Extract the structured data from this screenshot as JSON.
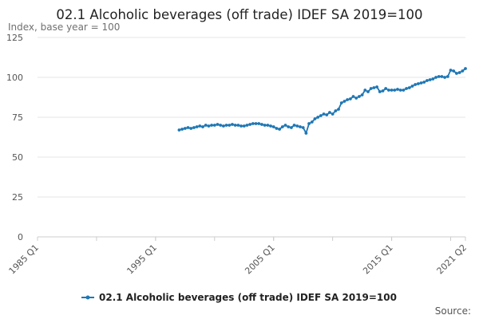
{
  "chart_data": {
    "type": "line",
    "title": "02.1 Alcoholic beverages (off trade) IDEF SA 2019=100",
    "ylabel": "Index, base year = 100",
    "xlabel": "",
    "x_ticks": [
      "1985 Q1",
      "1995 Q1",
      "2005 Q1",
      "2015 Q1",
      "2021 Q2"
    ],
    "y_ticks": [
      "0",
      "25",
      "50",
      "75",
      "100",
      "125"
    ],
    "xlim": [
      "1985 Q1",
      "2021 Q2"
    ],
    "ylim": [
      0,
      125
    ],
    "grid": "horizontal",
    "legend": "bottom-center",
    "source": "Source:",
    "colors": {
      "series": "#1f77b4",
      "grid": "#e4e4e4",
      "axis": "#cccccc"
    },
    "series": [
      {
        "name": "02.1 Alcoholic beverages (off trade) IDEF SA 2019=100",
        "x": [
          "1997 Q1",
          "1997 Q2",
          "1997 Q3",
          "1997 Q4",
          "1998 Q1",
          "1998 Q2",
          "1998 Q3",
          "1998 Q4",
          "1999 Q1",
          "1999 Q2",
          "1999 Q3",
          "1999 Q4",
          "2000 Q1",
          "2000 Q2",
          "2000 Q3",
          "2000 Q4",
          "2001 Q1",
          "2001 Q2",
          "2001 Q3",
          "2001 Q4",
          "2002 Q1",
          "2002 Q2",
          "2002 Q3",
          "2002 Q4",
          "2003 Q1",
          "2003 Q2",
          "2003 Q3",
          "2003 Q4",
          "2004 Q1",
          "2004 Q2",
          "2004 Q3",
          "2004 Q4",
          "2005 Q1",
          "2005 Q2",
          "2005 Q3",
          "2005 Q4",
          "2006 Q1",
          "2006 Q2",
          "2006 Q3",
          "2006 Q4",
          "2007 Q1",
          "2007 Q2",
          "2007 Q3",
          "2007 Q4",
          "2008 Q1",
          "2008 Q2",
          "2008 Q3",
          "2008 Q4",
          "2009 Q1",
          "2009 Q2",
          "2009 Q3",
          "2009 Q4",
          "2010 Q1",
          "2010 Q2",
          "2010 Q3",
          "2010 Q4",
          "2011 Q1",
          "2011 Q2",
          "2011 Q3",
          "2011 Q4",
          "2012 Q1",
          "2012 Q2",
          "2012 Q3",
          "2012 Q4",
          "2013 Q1",
          "2013 Q2",
          "2013 Q3",
          "2013 Q4",
          "2014 Q1",
          "2014 Q2",
          "2014 Q3",
          "2014 Q4",
          "2015 Q1",
          "2015 Q2",
          "2015 Q3",
          "2015 Q4",
          "2016 Q1",
          "2016 Q2",
          "2016 Q3",
          "2016 Q4",
          "2017 Q1",
          "2017 Q2",
          "2017 Q3",
          "2017 Q4",
          "2018 Q1",
          "2018 Q2",
          "2018 Q3",
          "2018 Q4",
          "2019 Q1",
          "2019 Q2",
          "2019 Q3",
          "2019 Q4",
          "2020 Q1",
          "2020 Q2",
          "2020 Q3",
          "2020 Q4",
          "2021 Q1",
          "2021 Q2"
        ],
        "values": [
          67,
          67.5,
          68,
          68.5,
          68,
          68.5,
          69,
          69.5,
          69,
          70,
          69.5,
          70,
          70,
          70.5,
          70,
          69.5,
          70,
          70,
          70.5,
          70,
          70,
          69.5,
          69.5,
          70,
          70.5,
          71,
          71,
          71,
          70.5,
          70,
          70,
          69.5,
          69,
          68,
          67.5,
          69,
          70,
          69,
          68.5,
          70,
          69.5,
          69,
          68.5,
          65,
          71,
          72,
          74,
          75,
          76,
          77,
          76.5,
          78,
          77,
          79,
          80,
          84,
          85,
          86,
          86.5,
          88,
          87,
          88,
          89,
          92,
          91,
          93,
          93.5,
          94,
          91,
          91.5,
          93,
          92,
          92,
          92,
          92.5,
          92,
          92,
          93,
          93.5,
          94.5,
          95.5,
          96,
          96.5,
          97,
          98,
          98.5,
          99,
          100,
          100.5,
          100.5,
          100,
          100.5,
          104.5,
          104,
          102.5,
          103,
          104,
          105.5
        ]
      }
    ]
  }
}
